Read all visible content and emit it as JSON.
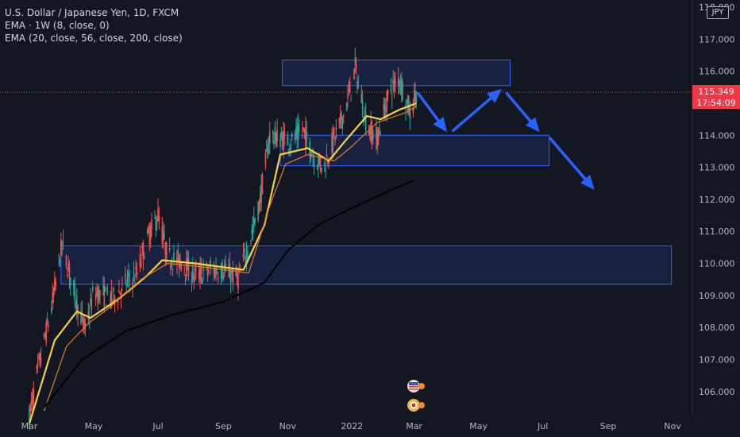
{
  "legend": {
    "symbol": "U.S. Dollar / Japanese Yen, 1D, FXCM",
    "ema1": "EMA · 1W (8, close, 0)",
    "ema2": "EMA (20, close, 56, close, 200, close)"
  },
  "currency": "JPY",
  "last_price": {
    "price": "115.349",
    "countdown": "17:54:09"
  },
  "colors": {
    "background": "#131722",
    "up": "#26a69a",
    "down": "#ef5350",
    "ema_weekly": "#f5d142",
    "ema_20": "#e07b27",
    "ema_200": "#000000",
    "zone_fill": "#1e2c5a",
    "zone_stroke": "#2962ff",
    "arrow": "#2962ff",
    "price_line": "#f23645"
  },
  "chart_data": {
    "type": "candlestick",
    "x_ticks": [
      "Mar",
      "May",
      "Jul",
      "Sep",
      "Nov",
      "2022",
      "Mar",
      "May",
      "Jul",
      "Sep",
      "Nov"
    ],
    "x_tick_dates": [
      "2021-03-01",
      "2021-05-01",
      "2021-07-01",
      "2021-09-01",
      "2021-11-01",
      "2022-01-01",
      "2022-03-01",
      "2022-05-01",
      "2022-07-01",
      "2022-09-01",
      "2022-11-01"
    ],
    "y_ticks": [
      "106.000",
      "107.000",
      "108.000",
      "109.000",
      "110.000",
      "111.000",
      "112.000",
      "113.000",
      "114.000",
      "115.000",
      "116.000",
      "117.000",
      "118.000"
    ],
    "ylim": [
      105.25,
      118.1
    ],
    "price_path": [
      [
        "2021-03-01",
        105.2
      ],
      [
        "2021-03-08",
        106.5
      ],
      [
        "2021-03-22",
        108.6
      ],
      [
        "2021-04-01",
        110.6
      ],
      [
        "2021-04-15",
        108.8
      ],
      [
        "2021-04-23",
        107.9
      ],
      [
        "2021-05-01",
        109.1
      ],
      [
        "2021-05-20",
        108.9
      ],
      [
        "2021-06-01",
        109.4
      ],
      [
        "2021-06-10",
        109.6
      ],
      [
        "2021-06-20",
        110.7
      ],
      [
        "2021-07-01",
        111.5
      ],
      [
        "2021-07-10",
        110.2
      ],
      [
        "2021-07-25",
        110.0
      ],
      [
        "2021-08-05",
        109.6
      ],
      [
        "2021-08-20",
        109.8
      ],
      [
        "2021-09-01",
        109.8
      ],
      [
        "2021-09-15",
        109.5
      ],
      [
        "2021-09-25",
        110.6
      ],
      [
        "2021-10-05",
        111.8
      ],
      [
        "2021-10-15",
        114.0
      ],
      [
        "2021-10-25",
        113.9
      ],
      [
        "2021-11-05",
        113.8
      ],
      [
        "2021-11-15",
        114.2
      ],
      [
        "2021-11-26",
        113.3
      ],
      [
        "2021-12-05",
        113.0
      ],
      [
        "2021-12-15",
        113.9
      ],
      [
        "2021-12-25",
        114.7
      ],
      [
        "2022-01-04",
        116.1
      ],
      [
        "2022-01-15",
        114.3
      ],
      [
        "2022-01-25",
        113.9
      ],
      [
        "2022-02-05",
        115.3
      ],
      [
        "2022-02-15",
        115.8
      ],
      [
        "2022-02-25",
        114.7
      ],
      [
        "2022-03-03",
        115.349
      ]
    ],
    "series": [
      {
        "name": "EMA · 1W (8, close, 0)",
        "style": "line",
        "points": [
          [
            "2021-03-01",
            105.0
          ],
          [
            "2021-03-25",
            107.6
          ],
          [
            "2021-04-15",
            108.5
          ],
          [
            "2021-04-28",
            108.3
          ],
          [
            "2021-05-25",
            108.9
          ],
          [
            "2021-06-20",
            109.6
          ],
          [
            "2021-07-05",
            110.1
          ],
          [
            "2021-08-05",
            110.0
          ],
          [
            "2021-09-20",
            109.8
          ],
          [
            "2021-10-10",
            111.2
          ],
          [
            "2021-10-25",
            113.4
          ],
          [
            "2021-11-20",
            113.6
          ],
          [
            "2021-12-10",
            113.2
          ],
          [
            "2021-12-25",
            113.8
          ],
          [
            "2022-01-15",
            114.6
          ],
          [
            "2022-01-28",
            114.5
          ],
          [
            "2022-02-15",
            114.8
          ],
          [
            "2022-03-03",
            115.0
          ]
        ]
      },
      {
        "name": "EMA 20",
        "style": "line",
        "points": [
          [
            "2021-03-15",
            105.4
          ],
          [
            "2021-04-05",
            107.4
          ],
          [
            "2021-04-25",
            108.1
          ],
          [
            "2021-05-15",
            108.6
          ],
          [
            "2021-06-15",
            109.5
          ],
          [
            "2021-07-10",
            110.0
          ],
          [
            "2021-08-10",
            109.9
          ],
          [
            "2021-09-25",
            109.7
          ],
          [
            "2021-10-15",
            111.8
          ],
          [
            "2021-10-30",
            113.1
          ],
          [
            "2021-11-20",
            113.4
          ],
          [
            "2021-12-15",
            113.2
          ],
          [
            "2021-12-30",
            113.6
          ],
          [
            "2022-01-25",
            114.4
          ],
          [
            "2022-02-20",
            114.7
          ],
          [
            "2022-03-03",
            114.9
          ]
        ]
      },
      {
        "name": "EMA 200",
        "style": "line",
        "points": [
          [
            "2021-03-15",
            105.5
          ],
          [
            "2021-04-20",
            107.0
          ],
          [
            "2021-06-01",
            107.9
          ],
          [
            "2021-07-15",
            108.4
          ],
          [
            "2021-09-01",
            108.8
          ],
          [
            "2021-10-10",
            109.4
          ],
          [
            "2021-11-01",
            110.4
          ],
          [
            "2021-11-30",
            111.2
          ],
          [
            "2021-12-30",
            111.7
          ],
          [
            "2022-02-01",
            112.2
          ],
          [
            "2022-03-01",
            112.6
          ]
        ]
      }
    ],
    "zones": [
      {
        "x": [
          "2021-10-27",
          "2022-05-31"
        ],
        "y": [
          115.55,
          116.35
        ]
      },
      {
        "x": [
          "2021-10-25",
          "2022-07-07"
        ],
        "y": [
          113.05,
          114.0
        ]
      },
      {
        "x": [
          "2021-03-31",
          "2022-10-31"
        ],
        "y": [
          109.35,
          110.55
        ]
      }
    ],
    "arrows": [
      {
        "from": [
          "2022-03-05",
          115.3
        ],
        "to": [
          "2022-04-01",
          114.1
        ]
      },
      {
        "from": [
          "2022-04-07",
          114.15
        ],
        "to": [
          "2022-05-23",
          115.45
        ]
      },
      {
        "from": [
          "2022-05-28",
          115.3
        ],
        "to": [
          "2022-06-28",
          114.1
        ]
      },
      {
        "from": [
          "2022-07-08",
          113.9
        ],
        "to": [
          "2022-08-19",
          112.3
        ]
      }
    ],
    "last_price_value": 115.349
  }
}
